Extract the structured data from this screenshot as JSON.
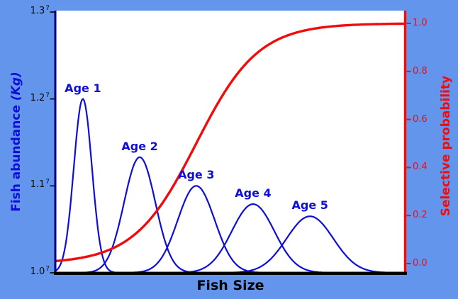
{
  "figure": {
    "background_color": "#6495ED",
    "plot_background": "#ffffff",
    "colors": {
      "curve_blue": "#0e0ed6",
      "curve_red": "#f20b0b",
      "left_spine": "#000080",
      "bottom_spine": "#000000",
      "right_spine": "#f20b0b",
      "left_tick_label": "#0a0a0a",
      "right_tick_label": "#f20b0b"
    }
  },
  "chart_data": {
    "type": "line",
    "title": "",
    "grid": false,
    "legend": "none",
    "xlabel": "Fish Size",
    "x_axis": {
      "range": [
        0,
        1
      ],
      "ticks": []
    },
    "left_axis": {
      "label_main": "Fish abundance ",
      "label_unit": "(Kg)",
      "range": [
        10000000,
        13000000
      ],
      "ticks": [
        {
          "value": 13000000,
          "base": "1.3",
          "exp": "7"
        },
        {
          "value": 12000000,
          "base": "1.2",
          "exp": "7"
        },
        {
          "value": 11000000,
          "base": "1.1",
          "exp": "7"
        },
        {
          "value": 10000000,
          "base": "1.0",
          "exp": "7"
        }
      ]
    },
    "right_axis": {
      "label": "Selective probability",
      "range": [
        0,
        1
      ],
      "ticks": [
        {
          "value": 1.0,
          "label": "1.0"
        },
        {
          "value": 0.8,
          "label": "0.8"
        },
        {
          "value": 0.6,
          "label": "0.6"
        },
        {
          "value": 0.4,
          "label": "0.4"
        },
        {
          "value": 0.2,
          "label": "0.2"
        },
        {
          "value": 0.0,
          "label": "0.0"
        }
      ]
    },
    "series": [
      {
        "name": "Age 1",
        "curve": "gaussian",
        "mean": 0.077,
        "sigma": 0.026,
        "peak": 12000000,
        "baseline": 10000000
      },
      {
        "name": "Age 2",
        "curve": "gaussian",
        "mean": 0.24,
        "sigma": 0.045,
        "peak": 11330000,
        "baseline": 10000000
      },
      {
        "name": "Age 3",
        "curve": "gaussian",
        "mean": 0.402,
        "sigma": 0.053,
        "peak": 11000000,
        "baseline": 10000000
      },
      {
        "name": "Age 4",
        "curve": "gaussian",
        "mean": 0.565,
        "sigma": 0.061,
        "peak": 10790000,
        "baseline": 10000000
      },
      {
        "name": "Age 5",
        "curve": "gaussian",
        "mean": 0.728,
        "sigma": 0.067,
        "peak": 10650000,
        "baseline": 10000000
      }
    ],
    "selectivity_curve": {
      "name": "Selective probability",
      "curve": "logistic",
      "midpoint": 0.402,
      "scale": 0.089,
      "min": 0.0,
      "max": 1.0,
      "axis": "right"
    }
  }
}
